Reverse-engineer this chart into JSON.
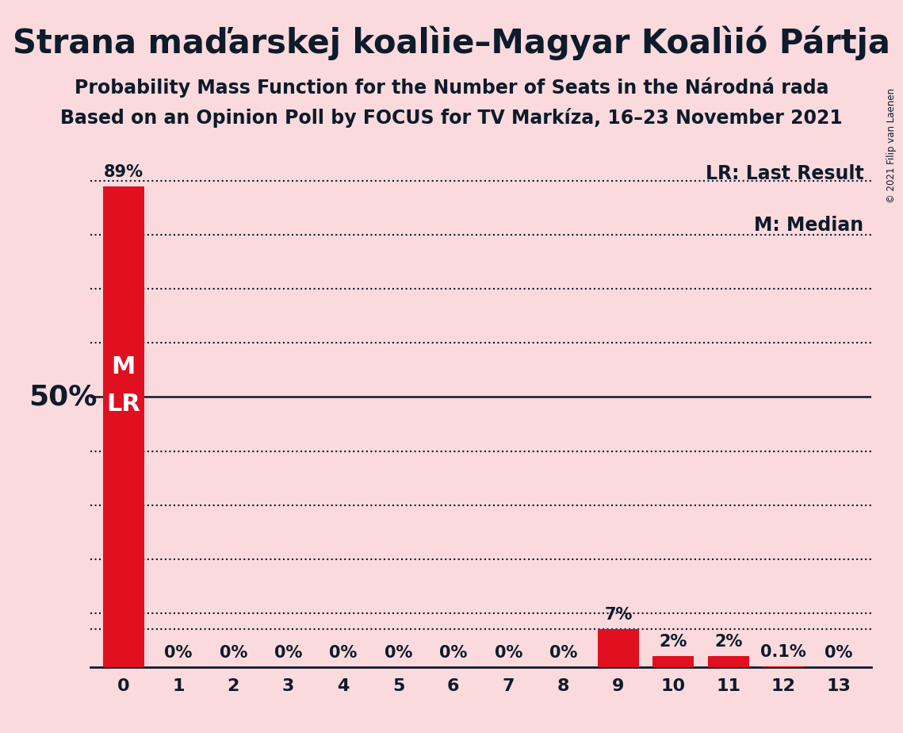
{
  "title": "Strana maďarskej koalìie–Magyar Koalìió Pártja",
  "subtitle1": "Probability Mass Function for the Number of Seats in the Národná rada",
  "subtitle2": "Based on an Opinion Poll by FOCUS for TV Markíza, 16–23 November 2021",
  "copyright": "© 2021 Filip van Laenen",
  "seats": [
    0,
    1,
    2,
    3,
    4,
    5,
    6,
    7,
    8,
    9,
    10,
    11,
    12,
    13
  ],
  "probabilities": [
    0.89,
    0.0,
    0.0,
    0.0,
    0.0,
    0.0,
    0.0,
    0.0,
    0.0,
    0.07,
    0.02,
    0.02,
    0.001,
    0.0
  ],
  "bar_labels": [
    "89%",
    "0%",
    "0%",
    "0%",
    "0%",
    "0%",
    "0%",
    "0%",
    "0%",
    "7%",
    "2%",
    "2%",
    "0.1%",
    "0%"
  ],
  "bar_color": "#e01020",
  "background_color": "#fadadd",
  "text_color": "#0d1b2a",
  "ylabel_text": "50%",
  "ylabel_value": 0.5,
  "median_seat": 0,
  "lr_seat": 0,
  "legend_lr": "LR: Last Result",
  "legend_m": "M: Median",
  "xlim": [
    -0.6,
    13.6
  ],
  "ylim": [
    0,
    0.95
  ],
  "y_solid_line": 0.5,
  "dotted_lines": [
    0.1,
    0.2,
    0.3,
    0.4,
    0.6,
    0.7,
    0.8,
    0.9
  ],
  "dotted_line_near_9": 0.07,
  "title_fontsize": 30,
  "subtitle_fontsize": 17,
  "label_fontsize": 16,
  "bar_label_fontsize": 15,
  "ylabel_fontsize": 26,
  "legend_fontsize": 17,
  "mlr_fontsize": 22,
  "bar_width": 0.75
}
